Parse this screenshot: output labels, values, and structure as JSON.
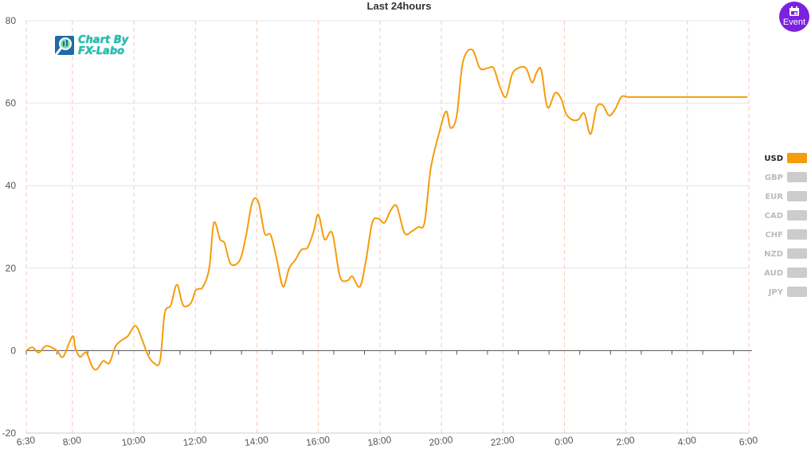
{
  "event_button": {
    "label": "Event",
    "icon": "calendar-icon",
    "color": "#7a22e0"
  },
  "logo": {
    "line1": "Chart By",
    "line2": "FX-Labo",
    "icon": "chart-magnifier-icon",
    "color": "#1fc2b4"
  },
  "chart_data": {
    "type": "line",
    "title": "Last 24hours",
    "xlabel": "",
    "ylabel": "",
    "ylim": [
      -20,
      80
    ],
    "yticks": [
      -20,
      0,
      20,
      40,
      60,
      80
    ],
    "grid": true,
    "xticks": [
      "6:30",
      "8:00",
      "10:00",
      "12:00",
      "14:00",
      "16:00",
      "18:00",
      "20:00",
      "22:00",
      "0:00",
      "2:00",
      "4:00",
      "6:00"
    ],
    "xtick_hours": [
      0,
      1.5,
      3.5,
      5.5,
      7.5,
      9.5,
      11.5,
      13.5,
      15.5,
      17.5,
      19.5,
      21.5,
      23.5
    ],
    "xlim_hours": [
      0,
      23.5
    ],
    "legend_position": "right",
    "series": [
      {
        "name": "USD",
        "color": "#f59c0c",
        "active": true,
        "x": [
          0,
          0.2,
          0.4,
          0.6,
          0.75,
          1.0,
          1.2,
          1.5,
          1.6,
          1.75,
          1.95,
          2.15,
          2.3,
          2.5,
          2.7,
          2.9,
          3.1,
          3.3,
          3.55,
          3.75,
          3.95,
          4.15,
          4.35,
          4.5,
          4.7,
          4.9,
          5.1,
          5.35,
          5.5,
          5.62,
          5.75,
          5.95,
          6.1,
          6.3,
          6.45,
          6.65,
          6.95,
          7.15,
          7.35,
          7.55,
          7.75,
          7.95,
          8.15,
          8.35,
          8.55,
          8.75,
          8.95,
          9.15,
          9.35,
          9.5,
          9.7,
          9.95,
          10.2,
          10.45,
          10.6,
          10.85,
          11.05,
          11.25,
          11.45,
          11.65,
          11.85,
          12.05,
          12.3,
          12.55,
          12.75,
          12.95,
          13.15,
          13.4,
          13.65,
          13.8,
          14.0,
          14.2,
          14.5,
          14.75,
          15.0,
          15.2,
          15.4,
          15.6,
          15.8,
          16.0,
          16.25,
          16.45,
          16.6,
          16.75,
          16.95,
          17.2,
          17.4,
          17.55,
          17.75,
          17.95,
          18.15,
          18.35,
          18.55,
          18.75,
          18.95,
          19.15,
          19.35,
          19.55,
          19.75,
          19.95,
          20.15,
          20.35,
          20.55,
          20.75,
          20.95,
          21.15,
          21.35,
          21.55,
          21.75,
          21.95,
          22.15,
          22.3,
          22.45,
          22.6,
          22.75,
          22.95,
          23.1,
          23.25,
          23.45
        ],
        "y": [
          0,
          0.8,
          -0.5,
          1,
          1,
          0,
          -1.5,
          3.5,
          0.5,
          -1.5,
          -0.5,
          -4,
          -4.5,
          -2.5,
          -3,
          1,
          2.5,
          3.5,
          6,
          3,
          -1,
          -3,
          -2.5,
          9,
          11,
          16,
          11,
          11.5,
          14.5,
          15,
          15.5,
          20,
          31,
          27,
          26,
          21,
          22,
          28,
          36,
          36,
          28.5,
          28,
          22,
          15.5,
          20,
          22,
          24.5,
          25,
          29,
          33,
          27,
          28.5,
          18,
          17,
          18,
          15.5,
          22,
          31,
          32,
          31,
          34,
          35,
          28.5,
          29,
          30,
          31,
          44,
          52,
          58,
          54,
          57,
          70,
          73,
          68.5,
          68.5,
          68.5,
          64,
          61.5,
          67,
          68.5,
          68.5,
          65,
          67.5,
          68,
          59,
          62.5,
          61,
          57.5,
          56,
          56,
          57.5,
          52.5,
          59,
          59.5,
          57,
          58.5,
          61.5,
          61.5,
          61.5,
          61.5,
          61.5,
          61.5,
          61.5,
          61.5,
          61.5,
          61.5,
          61.5,
          61.5,
          61.5,
          61.5,
          61.5,
          61.5,
          61.5,
          61.5,
          61.5,
          61.5,
          61.5,
          61.5,
          61.5
        ]
      },
      {
        "name": "GBP",
        "color": "#cccccc",
        "active": false
      },
      {
        "name": "EUR",
        "color": "#cccccc",
        "active": false
      },
      {
        "name": "CAD",
        "color": "#cccccc",
        "active": false
      },
      {
        "name": "CHF",
        "color": "#cccccc",
        "active": false
      },
      {
        "name": "NZD",
        "color": "#cccccc",
        "active": false
      },
      {
        "name": "AUD",
        "color": "#cccccc",
        "active": false
      },
      {
        "name": "JPY",
        "color": "#cccccc",
        "active": false
      }
    ]
  }
}
